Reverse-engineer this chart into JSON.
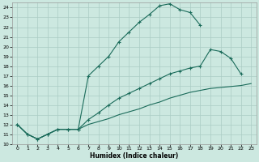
{
  "xlabel": "Humidex (Indice chaleur)",
  "bg_color": "#cce8e0",
  "grid_color": "#aaccC4",
  "line_color": "#1a6b5a",
  "xlim": [
    -0.5,
    23.5
  ],
  "ylim": [
    10,
    24.5
  ],
  "xticks": [
    0,
    1,
    2,
    3,
    4,
    5,
    6,
    7,
    8,
    9,
    10,
    11,
    12,
    13,
    14,
    15,
    16,
    17,
    18,
    19,
    20,
    21,
    22,
    23
  ],
  "yticks": [
    10,
    11,
    12,
    13,
    14,
    15,
    16,
    17,
    18,
    19,
    20,
    21,
    22,
    23,
    24
  ],
  "line1_x": [
    0,
    1,
    2,
    3,
    4,
    5,
    6,
    7,
    8,
    9,
    10,
    11,
    12,
    13,
    14,
    15,
    16,
    17,
    18
  ],
  "line1_y": [
    12,
    11,
    10.5,
    11,
    11.5,
    11.5,
    11.5,
    17,
    18,
    19,
    20.5,
    21.5,
    22.5,
    23.3,
    24.2,
    24.4,
    23.8,
    23.5,
    22.2
  ],
  "line2_x": [
    0,
    1,
    2,
    3,
    4,
    5,
    6,
    7,
    8,
    9,
    10,
    11,
    12,
    13,
    14,
    15,
    16,
    17,
    18,
    19,
    20,
    21,
    22
  ],
  "line2_y": [
    12,
    11,
    10.5,
    11,
    11.5,
    11.5,
    11.5,
    12.5,
    13.2,
    14,
    14.7,
    15.2,
    15.7,
    16.2,
    16.7,
    17.2,
    17.5,
    17.8,
    18.0,
    19.7,
    19.5,
    18.8,
    17.2
  ],
  "line3_x": [
    0,
    1,
    2,
    3,
    4,
    5,
    6,
    7,
    8,
    9,
    10,
    11,
    12,
    13,
    14,
    15,
    16,
    17,
    18,
    19,
    20,
    21,
    22,
    23
  ],
  "line3_y": [
    12,
    11,
    10.5,
    11,
    11.5,
    11.5,
    11.5,
    12.0,
    12.3,
    12.6,
    13.0,
    13.3,
    13.6,
    14.0,
    14.3,
    14.7,
    15.0,
    15.3,
    15.5,
    15.7,
    15.8,
    15.9,
    16.0,
    16.2
  ]
}
